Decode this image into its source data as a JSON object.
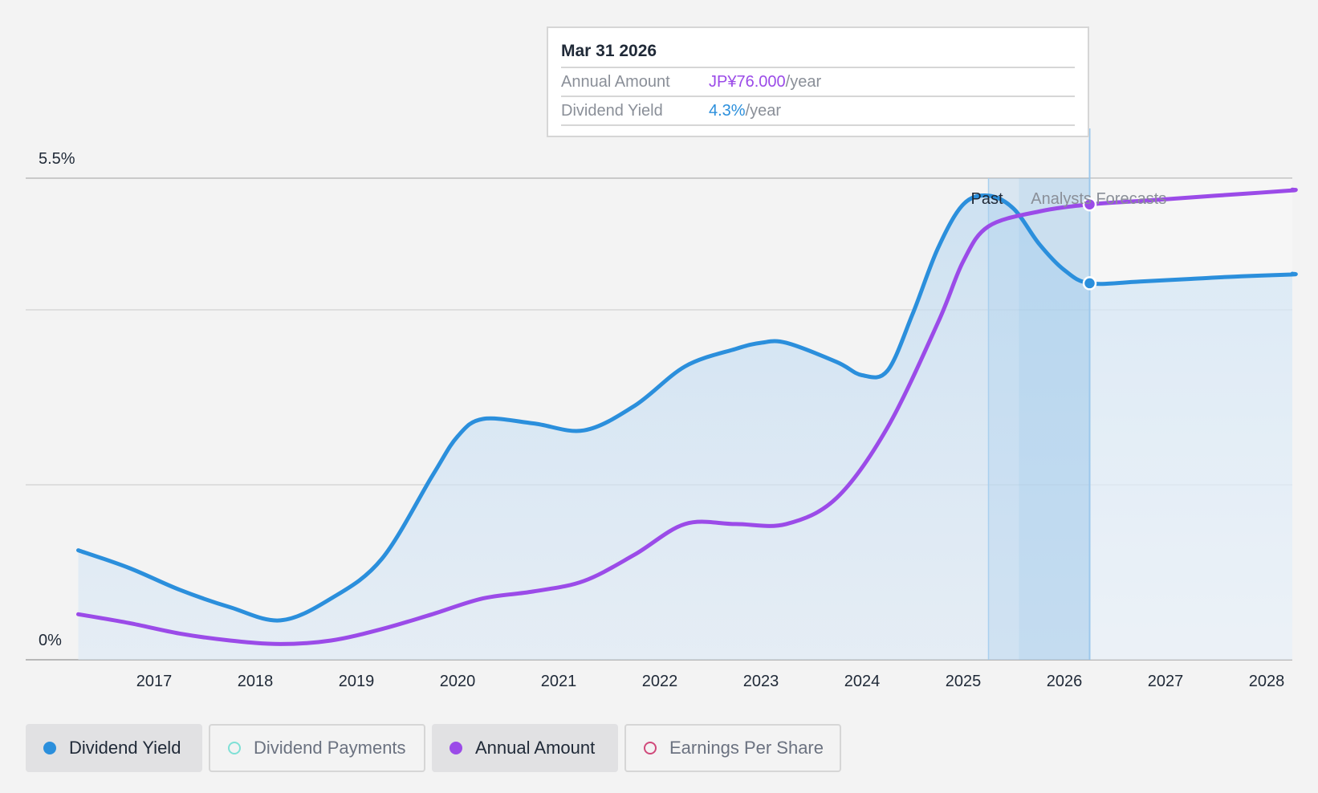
{
  "tooltip": {
    "date": "Mar 31 2026",
    "annual_label": "Annual Amount",
    "annual_value": "JP¥76.000",
    "annual_unit": "/year",
    "yield_label": "Dividend Yield",
    "yield_value": "4.3%",
    "yield_unit": "/year"
  },
  "legend": [
    {
      "label": "Dividend Yield",
      "color": "#2b8fdc",
      "active": true
    },
    {
      "label": "Dividend Payments",
      "color": "#7fe0d6",
      "active": false
    },
    {
      "label": "Annual Amount",
      "color": "#9b4be8",
      "active": true
    },
    {
      "label": "Earnings Per Share",
      "color": "#d0497a",
      "active": false
    }
  ],
  "chart_data": {
    "type": "line",
    "y_tick_labels": [
      "5.5%",
      "0%"
    ],
    "ylim": [
      0,
      5.5
    ],
    "x_tick_labels": [
      "2017",
      "2018",
      "2019",
      "2020",
      "2021",
      "2022",
      "2023",
      "2024",
      "2025",
      "2026",
      "2027",
      "2028"
    ],
    "xlim": [
      2016.0,
      2028.25
    ],
    "past_label": "Past",
    "forecast_label": "Analysts Forecasts",
    "past_boundary": 2025.25,
    "hover_date": 2026.25,
    "series": [
      {
        "name": "Dividend Yield",
        "color": "#2b8fdc",
        "x": [
          2016.25,
          2016.75,
          2017.25,
          2017.75,
          2018.25,
          2018.75,
          2019.25,
          2019.75,
          2020.0,
          2020.25,
          2020.75,
          2021.25,
          2021.75,
          2022.25,
          2022.75,
          2023.0,
          2023.25,
          2023.75,
          2024.0,
          2024.25,
          2024.5,
          2024.75,
          2025.0,
          2025.25,
          2025.5,
          2025.75,
          2026.0,
          2026.25,
          2026.75,
          2027.25,
          2027.75,
          2028.25
        ],
        "y": [
          1.25,
          1.05,
          0.8,
          0.6,
          0.45,
          0.7,
          1.15,
          2.1,
          2.55,
          2.75,
          2.7,
          2.62,
          2.9,
          3.35,
          3.55,
          3.62,
          3.62,
          3.4,
          3.25,
          3.3,
          3.95,
          4.7,
          5.2,
          5.3,
          5.15,
          4.75,
          4.45,
          4.3,
          4.32,
          4.35,
          4.38,
          4.4
        ]
      },
      {
        "name": "Annual Amount",
        "color": "#9b4be8",
        "x": [
          2016.25,
          2016.75,
          2017.25,
          2017.75,
          2018.25,
          2018.75,
          2019.25,
          2019.75,
          2020.25,
          2020.75,
          2021.25,
          2021.75,
          2022.25,
          2022.75,
          2023.25,
          2023.75,
          2024.25,
          2024.75,
          2025.0,
          2025.25,
          2025.75,
          2026.25,
          2026.75,
          2027.25,
          2027.75,
          2028.25
        ],
        "y": [
          0.52,
          0.42,
          0.3,
          0.22,
          0.18,
          0.22,
          0.35,
          0.52,
          0.7,
          0.78,
          0.9,
          1.2,
          1.55,
          1.55,
          1.55,
          1.85,
          2.65,
          3.85,
          4.55,
          4.95,
          5.12,
          5.2,
          5.24,
          5.28,
          5.32,
          5.36
        ]
      }
    ]
  }
}
